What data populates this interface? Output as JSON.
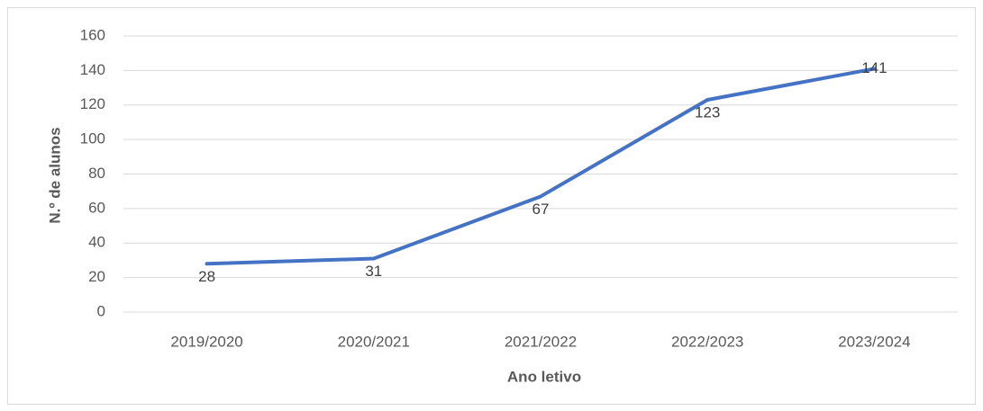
{
  "chart_data": {
    "type": "line",
    "categories": [
      "2019/2020",
      "2020/2021",
      "2021/2022",
      "2022/2023",
      "2023/2024"
    ],
    "series": [
      {
        "name": "N.º de alunos",
        "color": "#4472c4",
        "values": [
          28,
          31,
          67,
          123,
          141
        ]
      }
    ],
    "xlabel": "Ano letivo",
    "ylabel": "N.º de alunos",
    "ylim": [
      0,
      160
    ],
    "yticks": [
      0,
      20,
      40,
      60,
      80,
      100,
      120,
      140,
      160
    ],
    "grid": true
  }
}
